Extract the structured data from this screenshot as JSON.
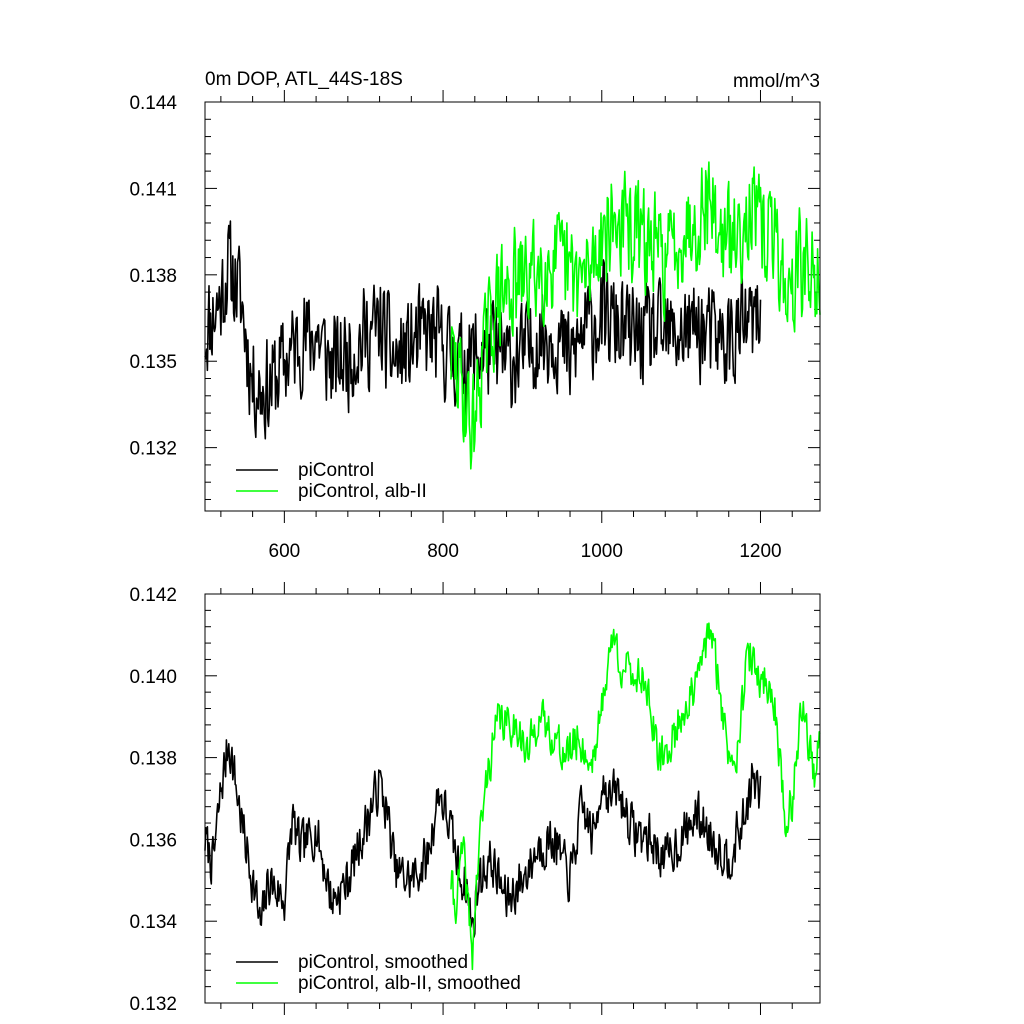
{
  "chart_data": [
    {
      "type": "line",
      "title": "0m DOP, ATL_44S-18S",
      "units_label": "mmol/m^3",
      "xlabel": "",
      "ylabel": "",
      "xlim": [
        500,
        1275
      ],
      "ylim": [
        0.1298,
        0.144
      ],
      "xticks": [
        600,
        800,
        1000,
        1200
      ],
      "xtick_labels": [
        "600",
        "800",
        "1000",
        "1200"
      ],
      "yticks": [
        0.132,
        0.135,
        0.138,
        0.141,
        0.144
      ],
      "ytick_labels": [
        "0.132",
        "0.135",
        "0.138",
        "0.141",
        "0.144"
      ],
      "legend_position": "bottom-left",
      "series": [
        {
          "name": "piControl",
          "color": "#000000",
          "x_start": 500,
          "x_end": 1200,
          "base": 0.1356,
          "noise": 0.0021,
          "seed": 11,
          "anchors": [
            [
              500,
              0.136
            ],
            [
              520,
              0.1372
            ],
            [
              530,
              0.1383
            ],
            [
              545,
              0.1372
            ],
            [
              560,
              0.1342
            ],
            [
              580,
              0.134
            ],
            [
              600,
              0.135
            ],
            [
              620,
              0.1357
            ],
            [
              640,
              0.136
            ],
            [
              660,
              0.1348
            ],
            [
              680,
              0.1352
            ],
            [
              700,
              0.1358
            ],
            [
              720,
              0.1362
            ],
            [
              740,
              0.135
            ],
            [
              760,
              0.1355
            ],
            [
              780,
              0.136
            ],
            [
              800,
              0.1355
            ],
            [
              820,
              0.135
            ],
            [
              840,
              0.1352
            ],
            [
              860,
              0.1355
            ],
            [
              880,
              0.135
            ],
            [
              900,
              0.1352
            ],
            [
              920,
              0.1358
            ],
            [
              940,
              0.136
            ],
            [
              960,
              0.135
            ],
            [
              980,
              0.1362
            ],
            [
              1000,
              0.1365
            ],
            [
              1020,
              0.1362
            ],
            [
              1040,
              0.1358
            ],
            [
              1060,
              0.136
            ],
            [
              1080,
              0.1358
            ],
            [
              1100,
              0.136
            ],
            [
              1120,
              0.1362
            ],
            [
              1140,
              0.1358
            ],
            [
              1160,
              0.1357
            ],
            [
              1180,
              0.1362
            ],
            [
              1200,
              0.1364
            ]
          ]
        },
        {
          "name": "piControl, alb-II",
          "color": "#00ff00",
          "x_start": 810,
          "x_end": 1275,
          "base": 0.138,
          "noise": 0.0022,
          "seed": 29,
          "anchors": [
            [
              810,
              0.1352
            ],
            [
              825,
              0.134
            ],
            [
              837,
              0.1325
            ],
            [
              850,
              0.1352
            ],
            [
              870,
              0.1372
            ],
            [
              900,
              0.1378
            ],
            [
              920,
              0.1382
            ],
            [
              940,
              0.1385
            ],
            [
              960,
              0.138
            ],
            [
              980,
              0.1378
            ],
            [
              1000,
              0.1395
            ],
            [
              1020,
              0.1398
            ],
            [
              1040,
              0.1395
            ],
            [
              1060,
              0.139
            ],
            [
              1080,
              0.1385
            ],
            [
              1100,
              0.1395
            ],
            [
              1120,
              0.14
            ],
            [
              1135,
              0.1408
            ],
            [
              1150,
              0.1392
            ],
            [
              1170,
              0.1392
            ],
            [
              1185,
              0.1405
            ],
            [
              1200,
              0.1395
            ],
            [
              1220,
              0.1392
            ],
            [
              1235,
              0.137
            ],
            [
              1250,
              0.1385
            ],
            [
              1265,
              0.1378
            ],
            [
              1275,
              0.1382
            ]
          ]
        }
      ]
    },
    {
      "type": "line",
      "title": "",
      "xlabel": "",
      "ylabel": "",
      "xlim": [
        500,
        1275
      ],
      "ylim": [
        0.132,
        0.142
      ],
      "xticks": [
        600,
        800,
        1000,
        1200
      ],
      "xtick_labels": [],
      "yticks": [
        0.132,
        0.134,
        0.136,
        0.138,
        0.14,
        0.142
      ],
      "ytick_labels": [
        "0.132",
        "0.134",
        "0.136",
        "0.138",
        "0.140",
        "0.142"
      ],
      "legend_position": "bottom-left",
      "series": [
        {
          "name": "piControl, smoothed",
          "color": "#000000",
          "x_start": 500,
          "x_end": 1200,
          "base": 0.1355,
          "noise": 0.0007,
          "seed": 7,
          "anchors": [
            [
              500,
              0.136
            ],
            [
              510,
              0.1354
            ],
            [
              520,
              0.1372
            ],
            [
              530,
              0.1384
            ],
            [
              540,
              0.1372
            ],
            [
              550,
              0.136
            ],
            [
              565,
              0.1345
            ],
            [
              570,
              0.1338
            ],
            [
              580,
              0.135
            ],
            [
              600,
              0.1345
            ],
            [
              610,
              0.1365
            ],
            [
              620,
              0.1358
            ],
            [
              640,
              0.1362
            ],
            [
              660,
              0.1345
            ],
            [
              680,
              0.135
            ],
            [
              700,
              0.1362
            ],
            [
              720,
              0.1374
            ],
            [
              730,
              0.1366
            ],
            [
              740,
              0.1352
            ],
            [
              760,
              0.135
            ],
            [
              780,
              0.1355
            ],
            [
              795,
              0.1372
            ],
            [
              810,
              0.1362
            ],
            [
              820,
              0.1352
            ],
            [
              830,
              0.1348
            ],
            [
              837,
              0.1338
            ],
            [
              845,
              0.135
            ],
            [
              860,
              0.1355
            ],
            [
              880,
              0.1345
            ],
            [
              900,
              0.135
            ],
            [
              920,
              0.1358
            ],
            [
              940,
              0.136
            ],
            [
              960,
              0.135
            ],
            [
              975,
              0.1368
            ],
            [
              990,
              0.136
            ],
            [
              1000,
              0.1375
            ],
            [
              1010,
              0.137
            ],
            [
              1020,
              0.1372
            ],
            [
              1040,
              0.1362
            ],
            [
              1060,
              0.136
            ],
            [
              1080,
              0.1355
            ],
            [
              1100,
              0.136
            ],
            [
              1120,
              0.1366
            ],
            [
              1140,
              0.136
            ],
            [
              1160,
              0.1355
            ],
            [
              1180,
              0.1365
            ],
            [
              1190,
              0.1375
            ],
            [
              1200,
              0.137
            ]
          ]
        },
        {
          "name": "piControl, alb-II, smoothed",
          "color": "#00ff00",
          "x_start": 810,
          "x_end": 1275,
          "base": 0.1382,
          "noise": 0.0006,
          "seed": 41,
          "anchors": [
            [
              810,
              0.135
            ],
            [
              815,
              0.1343
            ],
            [
              825,
              0.1358
            ],
            [
              837,
              0.1332
            ],
            [
              845,
              0.1358
            ],
            [
              855,
              0.1375
            ],
            [
              870,
              0.139
            ],
            [
              880,
              0.1388
            ],
            [
              895,
              0.1388
            ],
            [
              905,
              0.138
            ],
            [
              920,
              0.139
            ],
            [
              940,
              0.1385
            ],
            [
              955,
              0.138
            ],
            [
              970,
              0.1385
            ],
            [
              985,
              0.1378
            ],
            [
              995,
              0.1385
            ],
            [
              1005,
              0.14
            ],
            [
              1015,
              0.141
            ],
            [
              1025,
              0.1402
            ],
            [
              1040,
              0.14
            ],
            [
              1055,
              0.14
            ],
            [
              1070,
              0.138
            ],
            [
              1080,
              0.138
            ],
            [
              1100,
              0.139
            ],
            [
              1120,
              0.1398
            ],
            [
              1135,
              0.1412
            ],
            [
              1145,
              0.1402
            ],
            [
              1160,
              0.138
            ],
            [
              1170,
              0.1382
            ],
            [
              1185,
              0.1406
            ],
            [
              1195,
              0.14
            ],
            [
              1210,
              0.1398
            ],
            [
              1220,
              0.139
            ],
            [
              1232,
              0.1362
            ],
            [
              1240,
              0.137
            ],
            [
              1252,
              0.1393
            ],
            [
              1260,
              0.1385
            ],
            [
              1268,
              0.1375
            ],
            [
              1275,
              0.1384
            ]
          ]
        }
      ]
    }
  ]
}
